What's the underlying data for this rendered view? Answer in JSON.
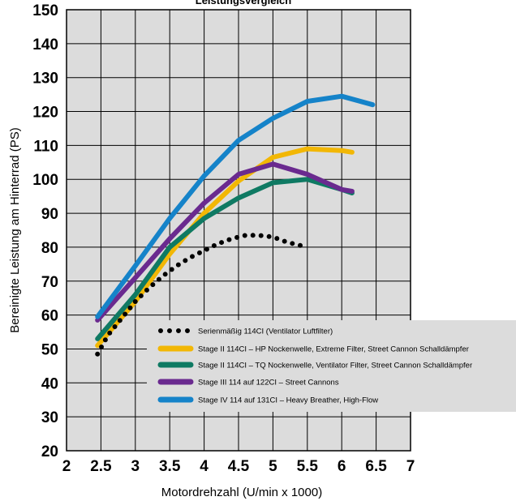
{
  "chart_data": {
    "type": "line",
    "title": "Leistungsvergleich",
    "xlabel": "Motordrehzahl (U/min x 1000)",
    "ylabel": "Bereinigte Leistung am Hinterrad (PS)",
    "xlim": [
      2,
      7
    ],
    "ylim": [
      20,
      150
    ],
    "x_ticks": [
      2,
      2.5,
      3,
      3.5,
      4,
      4.5,
      5,
      5.5,
      6,
      6.5,
      7
    ],
    "x_tick_labels": [
      "2",
      "2.5",
      "3",
      "3.5",
      "4",
      "4.5",
      "5",
      "5.5",
      "6",
      "6.5",
      "7"
    ],
    "y_ticks": [
      20,
      30,
      40,
      50,
      60,
      70,
      80,
      90,
      100,
      110,
      120,
      130,
      140,
      150
    ],
    "y_tick_labels": [
      "20",
      "30",
      "40",
      "50",
      "60",
      "70",
      "80",
      "90",
      "100",
      "110",
      "120",
      "130",
      "140",
      "150"
    ],
    "grid": true,
    "legend_position": "lower-right",
    "series": [
      {
        "name": "Serienmäßig 114CI (Ventilator Luftfilter)",
        "color": "#000000",
        "style": "dotted",
        "x": [
          2.45,
          2.6,
          2.8,
          3.0,
          3.2,
          3.4,
          3.6,
          3.8,
          4.0,
          4.2,
          4.4,
          4.6,
          4.8,
          5.0,
          5.2,
          5.4
        ],
        "y": [
          48.5,
          54,
          59,
          64,
          68,
          71.5,
          74.5,
          77,
          79,
          81,
          82.5,
          83.5,
          83.5,
          83,
          81.5,
          80.5
        ]
      },
      {
        "name": "Stage II 114CI – HP Nockenwelle, Extreme Filter, Street Cannon Schalldämpfer",
        "color": "#f2b705",
        "style": "solid",
        "x": [
          2.45,
          3.0,
          3.5,
          4.0,
          4.5,
          5.0,
          5.5,
          6.0,
          6.15
        ],
        "y": [
          51,
          64,
          78,
          90,
          99.5,
          106.5,
          109,
          108.5,
          108
        ]
      },
      {
        "name": "Stage II 114CI – TQ Nockenwelle, Ventilator Filter, Street Cannon Schalldämpfer",
        "color": "#0f7a63",
        "style": "solid",
        "x": [
          2.45,
          3.0,
          3.5,
          4.0,
          4.5,
          5.0,
          5.5,
          6.0,
          6.15
        ],
        "y": [
          53,
          66,
          80,
          88.5,
          94.5,
          99,
          100,
          97,
          96
        ]
      },
      {
        "name": "Stage III 114 auf 122CI – Street Cannons",
        "color": "#6a2a8f",
        "style": "solid",
        "x": [
          2.45,
          3.0,
          3.5,
          4.0,
          4.5,
          5.0,
          5.5,
          6.0,
          6.15
        ],
        "y": [
          58.5,
          71,
          82.5,
          93,
          101.5,
          104.5,
          101.5,
          97,
          96.5
        ]
      },
      {
        "name": "Stage IV 114 auf 131CI – Heavy Breather, High-Flow",
        "color": "#1583c9",
        "style": "solid",
        "x": [
          2.45,
          3.0,
          3.5,
          4.0,
          4.5,
          5.0,
          5.5,
          6.0,
          6.45
        ],
        "y": [
          59.5,
          74.5,
          88.5,
          101,
          111.5,
          118,
          123,
          124.5,
          122
        ]
      }
    ]
  }
}
